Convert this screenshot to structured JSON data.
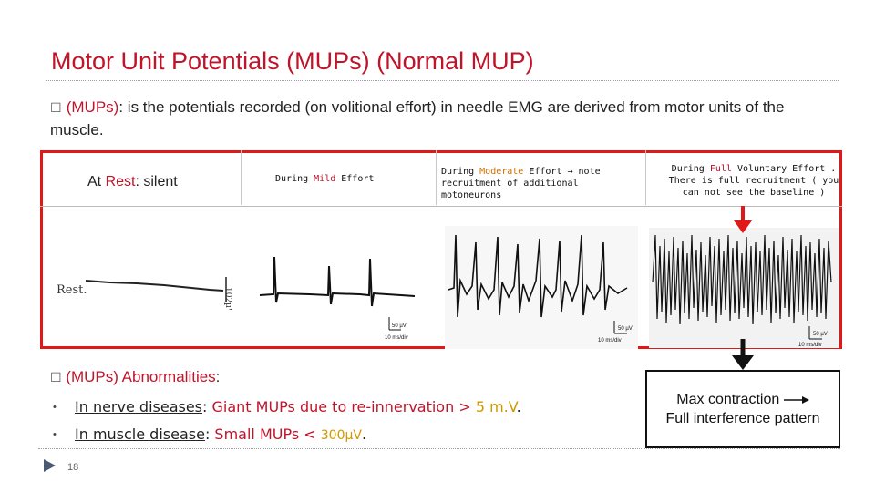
{
  "slide": {
    "title": "Motor Unit Potentials (MUPs) (Normal MUP)",
    "intro_lead": "(MUPs)",
    "intro_rest": ": is the potentials recorded (on volitional effort) in needle EMG are derived from motor units of the muscle.",
    "panels": {
      "rest": {
        "prefix": "At ",
        "highlight": "Rest",
        "suffix": ": silent",
        "trace_label": "Rest.",
        "trace_scale": "102µV"
      },
      "mild": {
        "prefix": "During ",
        "highlight": "Mild",
        "suffix": " Effort",
        "scale": "50 µV",
        "scale2": "10 ms/div"
      },
      "moderate": {
        "prefix": "During ",
        "highlight": "Moderate",
        "suffix": " Effort → note recruitment of additional motoneurons",
        "scale": "50 µV",
        "scale2": "10 ms/div"
      },
      "full": {
        "prefix": "During ",
        "highlight": "Full",
        "suffix": " Voluntary Effort . There is full recruitment ( you can not see the baseline )",
        "scale": "50 µV",
        "scale2": "10 ms/div"
      }
    },
    "abnormal_lead": "(MUPs) Abnormalities",
    "abnormal_colon": ":",
    "items": [
      {
        "label": "In nerve diseases",
        "colon": ":",
        "desc": " Giant MUPs due to  re-innervation > ",
        "value": "5 m.V",
        "end": "."
      },
      {
        "label": "In muscle disease",
        "colon": ":",
        "desc": " Small MUPs < ",
        "value": "300μV",
        "end": "."
      }
    ],
    "max_box": {
      "line1": "Max contraction",
      "line2": "Full interference pattern"
    },
    "page_number": "18",
    "colors": {
      "title": "#c0142a",
      "frame": "#e01818",
      "highlight": "#d09800"
    }
  }
}
